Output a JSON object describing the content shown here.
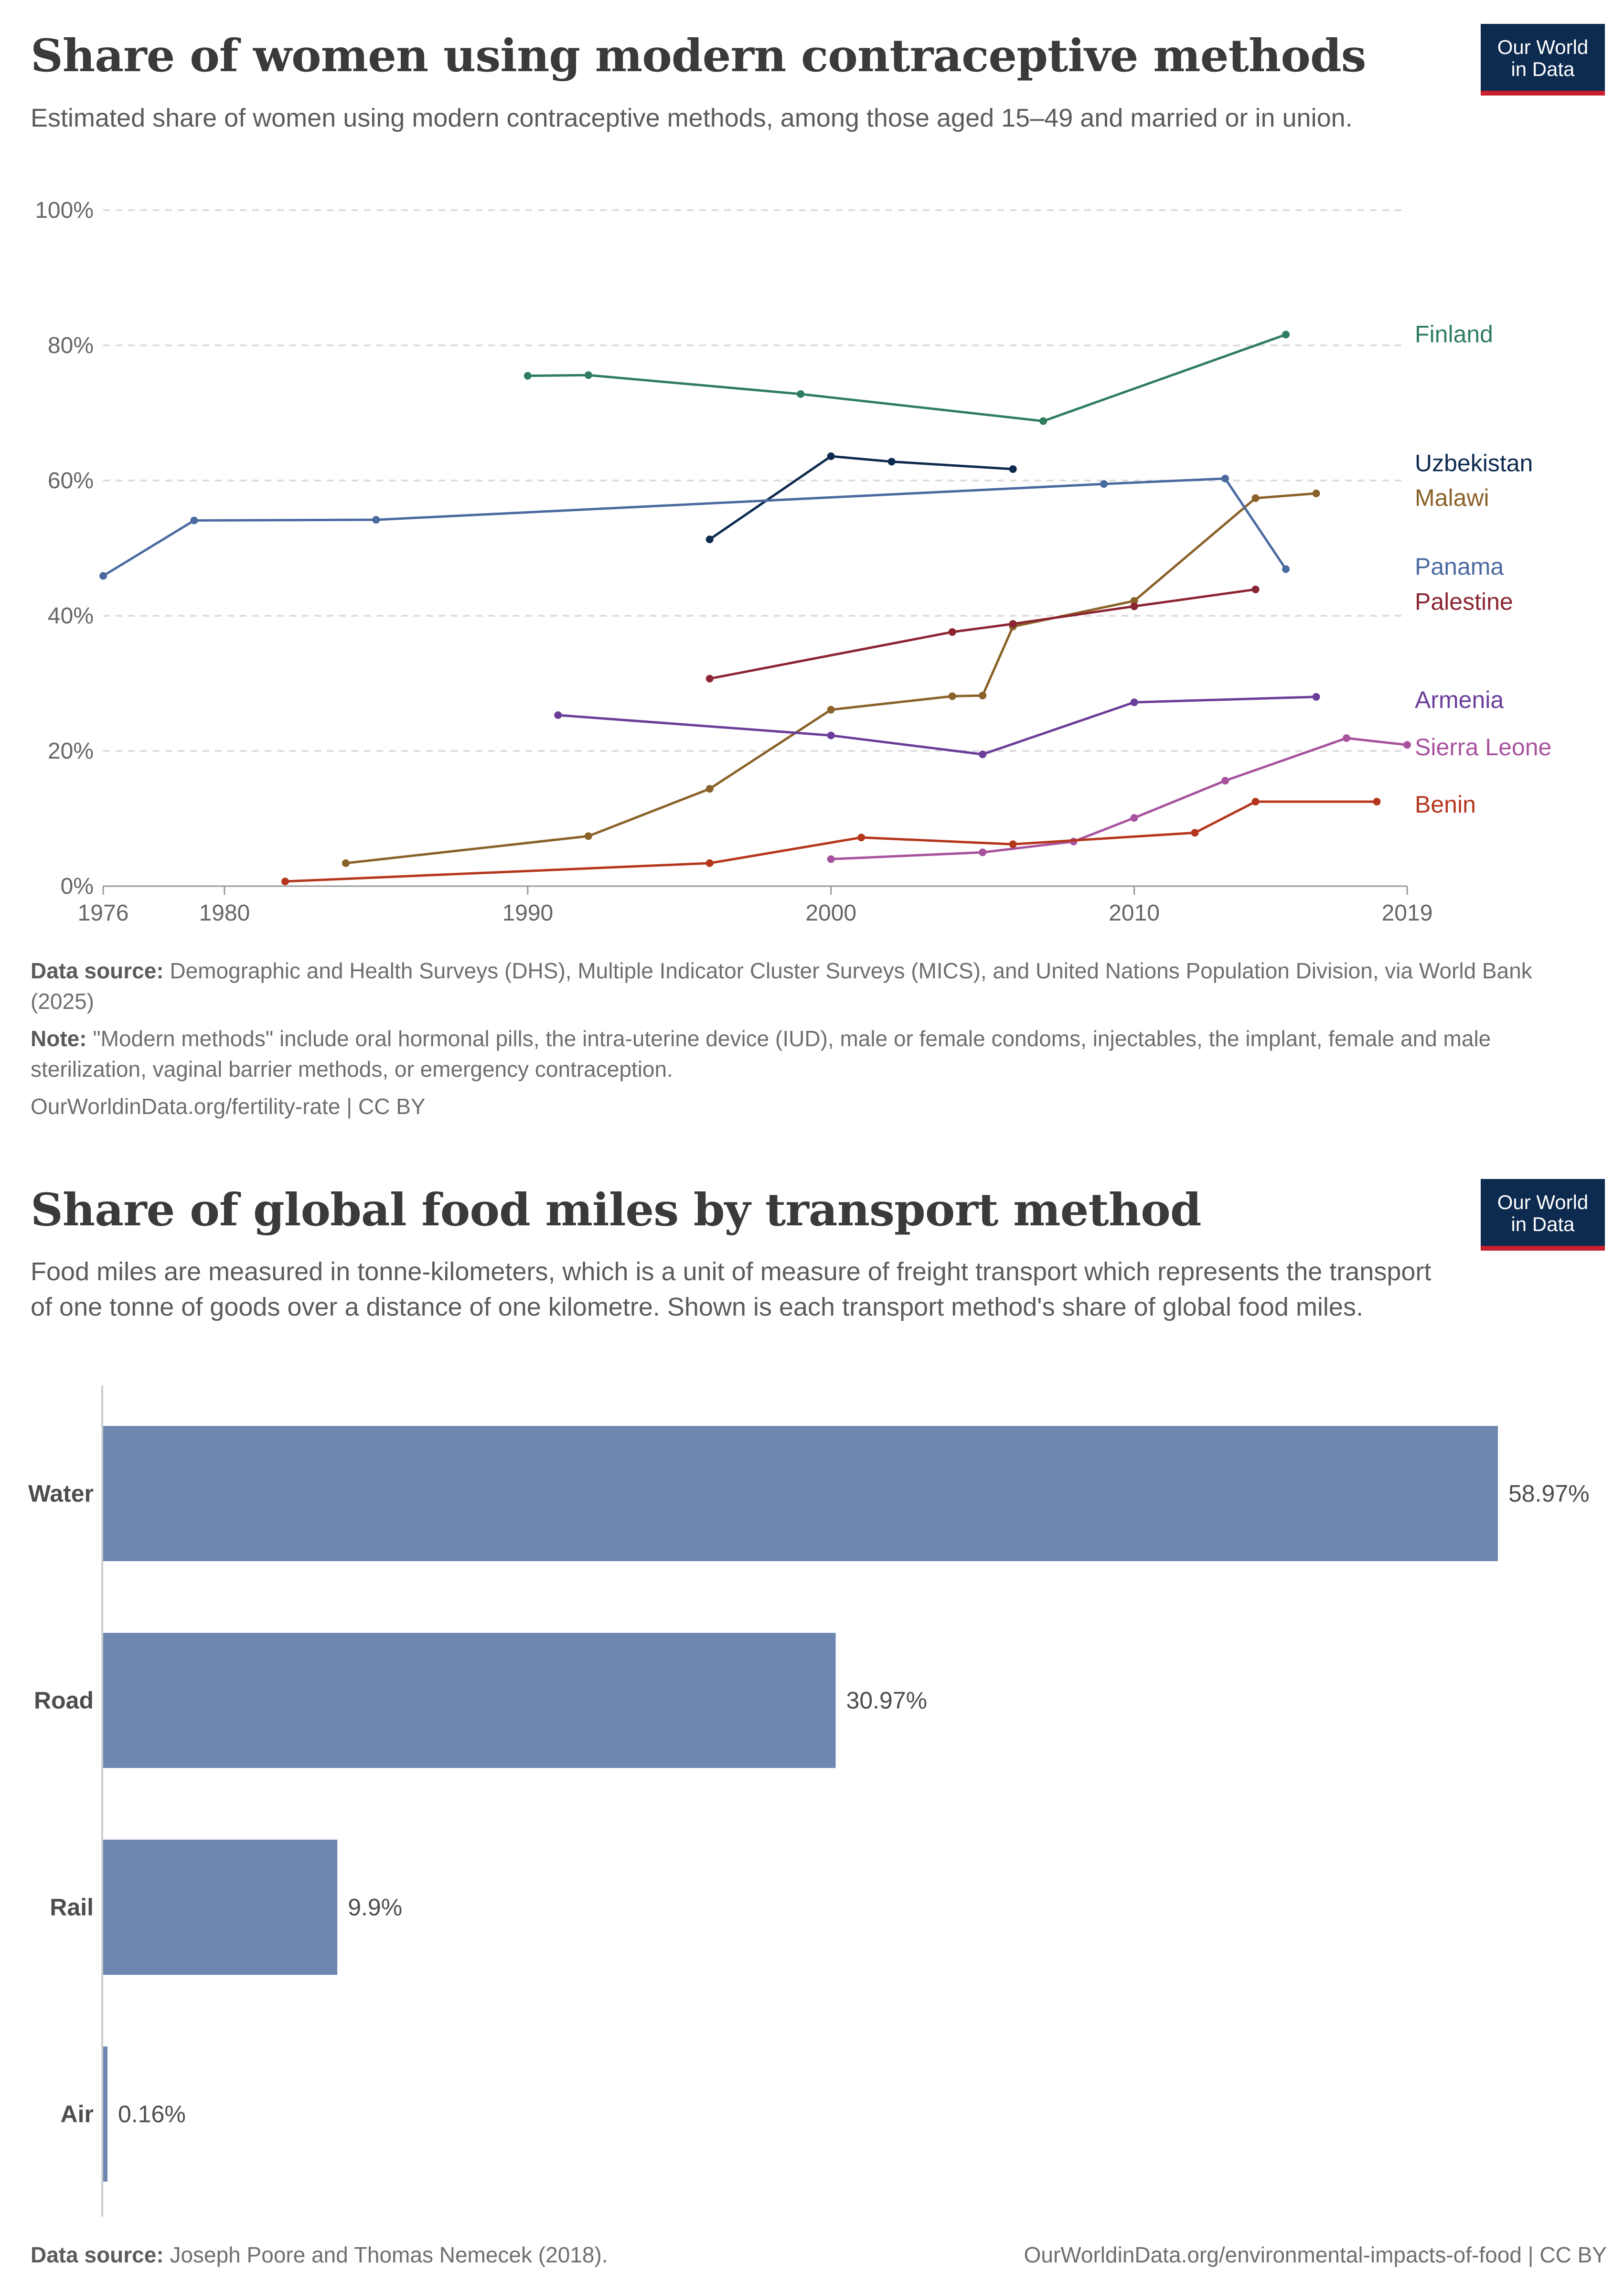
{
  "logo": {
    "line1": "Our World",
    "line2": "in Data"
  },
  "chart1": {
    "title": "Share of women using modern contraceptive methods",
    "subtitle": "Estimated share of women using modern contraceptive methods, among those aged 15–49 and married or in union.",
    "source_label": "Data source:",
    "source_text": "Demographic and Health Surveys (DHS), Multiple Indicator Cluster Surveys (MICS), and United Nations Population Division, via World Bank (2025)",
    "note_label": "Note:",
    "note_text": "\"Modern methods\" include oral hormonal pills, the intra-uterine device (IUD), male or female condoms, injectables, the implant, female and male sterilization, vaginal barrier methods, or emergency contraception.",
    "url": "OurWorldinData.org/fertility-rate | CC BY"
  },
  "chart2": {
    "title": "Share of global food miles by transport method",
    "subtitle": "Food miles are measured in tonne-kilometers, which is a unit of measure of freight transport which represents the transport of one tonne of goods over a distance of one kilometre. Shown is each transport method's share of global food miles.",
    "source_label": "Data source:",
    "source_text": "Joseph Poore and Thomas Nemecek (2018).",
    "url": "OurWorldinData.org/environmental-impacts-of-food | CC BY"
  },
  "chart_data": [
    {
      "type": "line",
      "title": "Share of women using modern contraceptive methods",
      "xlabel": "",
      "ylabel": "",
      "xlim": [
        1976,
        2019
      ],
      "ylim": [
        0,
        100
      ],
      "x_ticks": [
        1976,
        1980,
        1990,
        2000,
        2010,
        2019
      ],
      "y_ticks": [
        0,
        20,
        40,
        60,
        80,
        100
      ],
      "y_tick_labels": [
        "0%",
        "20%",
        "40%",
        "60%",
        "80%",
        "100%"
      ],
      "series": [
        {
          "name": "Finland",
          "color": "#2e7d5e",
          "x": [
            1990,
            1992,
            1999,
            2007,
            2015
          ],
          "y": [
            75.5,
            75.6,
            72.8,
            68.8,
            81.6
          ]
        },
        {
          "name": "Uzbekistan",
          "color": "#0d2a4f",
          "x": [
            1996,
            2000,
            2002,
            2006
          ],
          "y": [
            51.3,
            63.6,
            62.8,
            61.7
          ]
        },
        {
          "name": "Malawi",
          "color": "#8a6128",
          "x": [
            1984,
            1992,
            1996,
            2000,
            2004,
            2005,
            2006,
            2010,
            2014,
            2016
          ],
          "y": [
            3.4,
            7.4,
            14.4,
            26.1,
            28.1,
            28.2,
            38.4,
            42.2,
            57.4,
            58.1
          ]
        },
        {
          "name": "Panama",
          "color": "#4a6aa0",
          "x": [
            1976,
            1979,
            1985,
            2009,
            2013,
            2015
          ],
          "y": [
            45.9,
            54.1,
            54.2,
            59.5,
            60.3,
            46.9
          ]
        },
        {
          "name": "Palestine",
          "color": "#8b2532",
          "x": [
            1996,
            2004,
            2006,
            2010,
            2014
          ],
          "y": [
            30.7,
            37.6,
            38.8,
            41.4,
            43.9
          ]
        },
        {
          "name": "Armenia",
          "color": "#6b3d9a",
          "x": [
            1991,
            2000,
            2005,
            2010,
            2016
          ],
          "y": [
            25.3,
            22.3,
            19.5,
            27.2,
            28.0
          ]
        },
        {
          "name": "Sierra Leone",
          "color": "#a8529e",
          "x": [
            2000,
            2005,
            2008,
            2010,
            2013,
            2017,
            2019
          ],
          "y": [
            4.0,
            5.0,
            6.6,
            10.1,
            15.6,
            21.9,
            20.9
          ]
        },
        {
          "name": "Benin",
          "color": "#b5361c",
          "x": [
            1982,
            1996,
            2001,
            2006,
            2012,
            2014,
            2018
          ],
          "y": [
            0.7,
            3.4,
            7.2,
            6.2,
            7.9,
            12.5,
            12.5
          ]
        }
      ]
    },
    {
      "type": "bar",
      "orientation": "horizontal",
      "title": "Share of global food miles by transport method",
      "categories": [
        "Water",
        "Road",
        "Rail",
        "Air"
      ],
      "values": [
        58.97,
        30.97,
        9.9,
        0.16
      ],
      "value_labels": [
        "58.97%",
        "30.97%",
        "9.9%",
        "0.16%"
      ],
      "color": "#6e87b0",
      "xlim": [
        0,
        58.97
      ]
    }
  ]
}
